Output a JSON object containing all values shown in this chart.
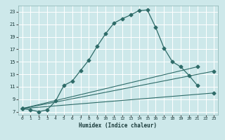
{
  "xlabel": "Humidex (Indice chaleur)",
  "bg_color": "#cde8ea",
  "grid_color": "#ffffff",
  "line_color": "#2e6b68",
  "xlim": [
    -0.5,
    23.5
  ],
  "ylim": [
    6.5,
    24.0
  ],
  "xticks": [
    0,
    1,
    2,
    3,
    4,
    5,
    6,
    7,
    8,
    9,
    10,
    11,
    12,
    13,
    14,
    15,
    16,
    17,
    18,
    19,
    20,
    21,
    22,
    23
  ],
  "yticks": [
    7,
    9,
    11,
    13,
    15,
    17,
    19,
    21,
    23
  ],
  "curve1_x": [
    0,
    1,
    2,
    3,
    4,
    5,
    6,
    7,
    8,
    9,
    10,
    11,
    12,
    13,
    14,
    15,
    16,
    17,
    18,
    19,
    20,
    21
  ],
  "curve1_y": [
    7.5,
    7.3,
    7.0,
    7.3,
    8.7,
    11.2,
    11.9,
    13.6,
    15.3,
    17.5,
    19.5,
    21.2,
    21.9,
    22.5,
    23.2,
    23.3,
    20.5,
    17.2,
    15.0,
    14.2,
    12.8,
    11.2
  ],
  "curve2_x": [
    0,
    21
  ],
  "curve2_y": [
    7.5,
    14.2
  ],
  "curve3_x": [
    0,
    23
  ],
  "curve3_y": [
    7.5,
    13.5
  ],
  "curve4_x": [
    0,
    23
  ],
  "curve4_y": [
    7.5,
    10.0
  ],
  "marker": "D",
  "markersize": 2.5
}
